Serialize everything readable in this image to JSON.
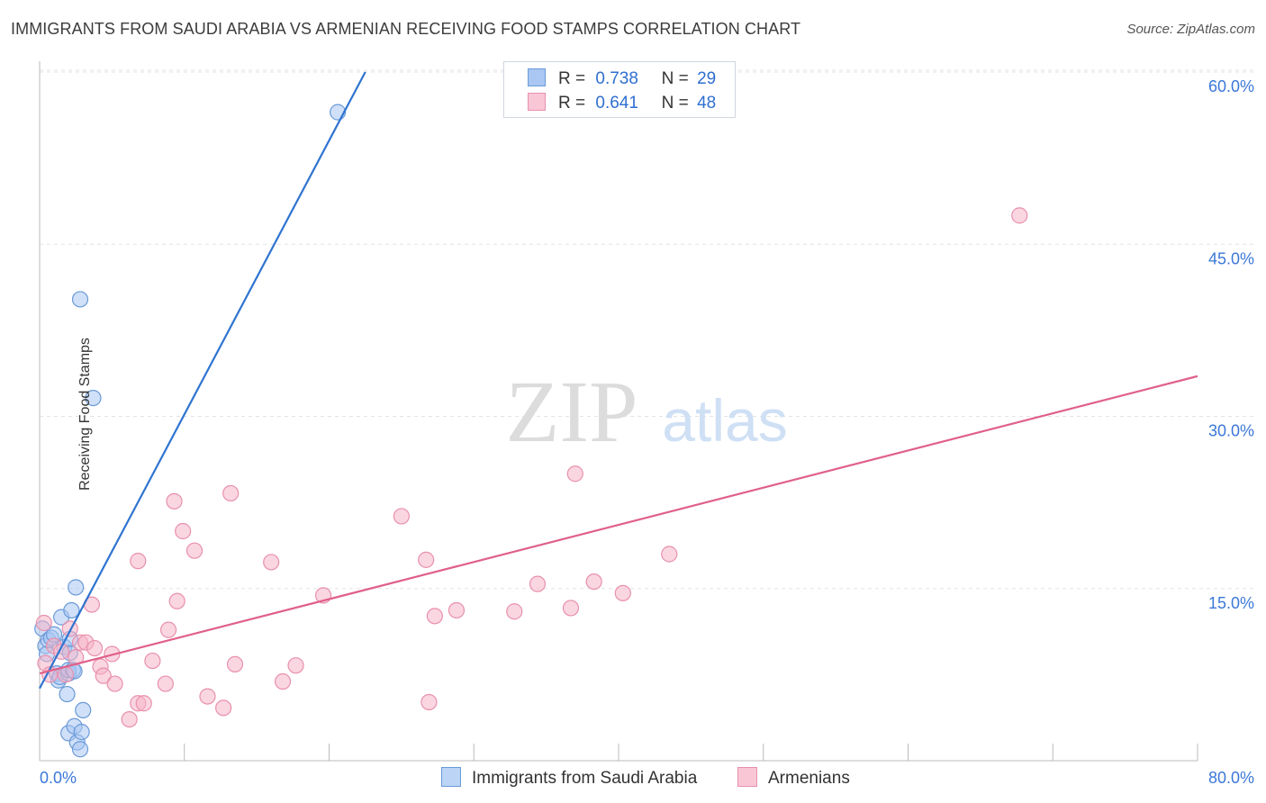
{
  "title": "IMMIGRANTS FROM SAUDI ARABIA VS ARMENIAN RECEIVING FOOD STAMPS CORRELATION CHART",
  "source": "Source: ZipAtlas.com",
  "watermark": {
    "zip": "ZIP",
    "atlas": "atlas"
  },
  "colors": {
    "blue": "#2f74d0",
    "blue_fill": "#a9c7f2",
    "pink": "#e0608a",
    "pink_fill": "#f6b4c9",
    "tick_label": "#3b78d8"
  },
  "legend": {
    "r_label": "R =",
    "n_label": "N =",
    "series": [
      {
        "r": "0.738",
        "n": "29"
      },
      {
        "r": "0.641",
        "n": "48"
      }
    ]
  },
  "chart_data": {
    "type": "scatter",
    "title": "IMMIGRANTS FROM SAUDI ARABIA VS ARMENIAN RECEIVING FOOD STAMPS CORRELATION CHART",
    "xlabel": "",
    "ylabel": "Receiving Food Stamps",
    "xlim": [
      0,
      80
    ],
    "ylim": [
      0,
      63
    ],
    "x_tick_labels": [
      {
        "value": 0,
        "label": "0.0%"
      },
      {
        "value": 80,
        "label": "80.0%"
      }
    ],
    "y_tick_labels": [
      {
        "value": 15,
        "label": "15.0%"
      },
      {
        "value": 30,
        "label": "30.0%"
      },
      {
        "value": 45,
        "label": "45.0%"
      },
      {
        "value": 60,
        "label": "60.0%"
      }
    ],
    "series": [
      {
        "name": "Immigrants from Saudi Arabia",
        "color": "blue",
        "points": [
          [
            0.2,
            11.5
          ],
          [
            0.4,
            10.0
          ],
          [
            0.5,
            9.3
          ],
          [
            0.6,
            10.5
          ],
          [
            0.8,
            10.7
          ],
          [
            1.0,
            11.0
          ],
          [
            1.2,
            7.6
          ],
          [
            1.3,
            7.0
          ],
          [
            1.4,
            7.3
          ],
          [
            1.5,
            12.5
          ],
          [
            1.7,
            9.9
          ],
          [
            1.9,
            5.8
          ],
          [
            2.0,
            2.4
          ],
          [
            2.1,
            9.4
          ],
          [
            2.1,
            10.6
          ],
          [
            2.0,
            7.6
          ],
          [
            2.0,
            7.9
          ],
          [
            2.2,
            13.1
          ],
          [
            2.3,
            7.9
          ],
          [
            2.4,
            7.8
          ],
          [
            2.4,
            3.0
          ],
          [
            2.5,
            15.1
          ],
          [
            2.6,
            1.6
          ],
          [
            2.8,
            1.0
          ],
          [
            2.9,
            2.5
          ],
          [
            3.0,
            4.4
          ],
          [
            2.8,
            40.2
          ],
          [
            3.7,
            31.6
          ],
          [
            20.6,
            56.5
          ]
        ],
        "fit": {
          "x": [
            0,
            22.5
          ],
          "y": [
            6.3,
            60.0
          ]
        }
      },
      {
        "name": "Armenians",
        "color": "pink",
        "points": [
          [
            0.3,
            12.0
          ],
          [
            0.4,
            8.5
          ],
          [
            0.7,
            7.5
          ],
          [
            1.0,
            10.0
          ],
          [
            1.5,
            9.5
          ],
          [
            1.8,
            7.5
          ],
          [
            2.1,
            11.5
          ],
          [
            2.5,
            9.0
          ],
          [
            2.8,
            10.3
          ],
          [
            3.2,
            10.3
          ],
          [
            3.6,
            13.6
          ],
          [
            3.8,
            9.8
          ],
          [
            4.2,
            8.2
          ],
          [
            4.4,
            7.4
          ],
          [
            5.0,
            9.3
          ],
          [
            5.2,
            6.7
          ],
          [
            6.2,
            3.6
          ],
          [
            6.8,
            17.4
          ],
          [
            6.8,
            5.0
          ],
          [
            7.2,
            5.0
          ],
          [
            7.8,
            8.7
          ],
          [
            8.7,
            6.7
          ],
          [
            8.9,
            11.4
          ],
          [
            9.3,
            22.6
          ],
          [
            9.5,
            13.9
          ],
          [
            9.9,
            20.0
          ],
          [
            10.7,
            18.3
          ],
          [
            11.6,
            5.6
          ],
          [
            12.7,
            4.6
          ],
          [
            13.2,
            23.3
          ],
          [
            13.5,
            8.4
          ],
          [
            16.0,
            17.3
          ],
          [
            16.8,
            6.9
          ],
          [
            17.7,
            8.3
          ],
          [
            19.6,
            14.4
          ],
          [
            25.0,
            21.3
          ],
          [
            26.7,
            17.5
          ],
          [
            26.9,
            5.1
          ],
          [
            27.3,
            12.6
          ],
          [
            28.8,
            13.1
          ],
          [
            32.8,
            13.0
          ],
          [
            34.4,
            15.4
          ],
          [
            36.7,
            13.3
          ],
          [
            37.0,
            25.0
          ],
          [
            38.3,
            15.6
          ],
          [
            40.3,
            14.6
          ],
          [
            43.5,
            18.0
          ],
          [
            67.7,
            47.5
          ]
        ],
        "fit": {
          "x": [
            0,
            80
          ],
          "y": [
            7.6,
            33.5
          ]
        }
      }
    ]
  },
  "bottom_legend": [
    {
      "label": "Immigrants from Saudi Arabia"
    },
    {
      "label": "Armenians"
    }
  ]
}
